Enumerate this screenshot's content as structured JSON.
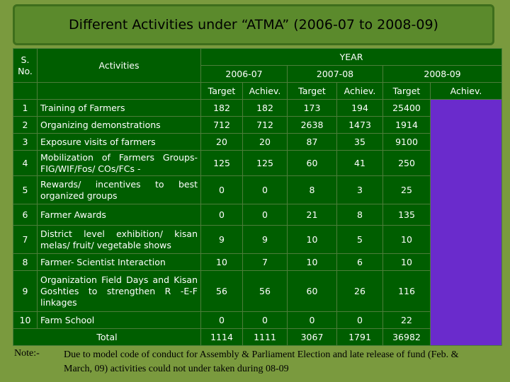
{
  "title": "Different  Activities under “ATMA” (2006-07 to 2008-09)",
  "table": {
    "header": {
      "s_no": "S. No.",
      "activities": "Activities",
      "year": "YEAR",
      "years": [
        "2006-07",
        "2007-08",
        "2008-09"
      ],
      "columns": [
        "Target",
        "Achiev.",
        "Target",
        "Achiev.",
        "Target",
        "Achiev."
      ]
    },
    "rows": [
      {
        "no": 1,
        "activity": "Training of Farmers",
        "values": [
          182,
          182,
          173,
          194,
          25400
        ]
      },
      {
        "no": 2,
        "activity": "Organizing demonstrations",
        "values": [
          712,
          712,
          2638,
          1473,
          1914
        ]
      },
      {
        "no": 3,
        "activity": "Exposure visits of farmers",
        "values": [
          20,
          20,
          87,
          35,
          9100
        ]
      },
      {
        "no": 4,
        "activity": "Mobilization of Farmers Groups- FIG/WIF/Fos/ COs/FCs -",
        "values": [
          125,
          125,
          60,
          41,
          250
        ]
      },
      {
        "no": 5,
        "activity": "Rewards/ incentives to best organized groups",
        "values": [
          0,
          0,
          8,
          3,
          25
        ]
      },
      {
        "no": 6,
        "activity": "Farmer Awards",
        "values": [
          0,
          0,
          21,
          8,
          135
        ]
      },
      {
        "no": 7,
        "activity": "District level exhibition/ kisan melas/ fruit/ vegetable shows",
        "values": [
          9,
          9,
          10,
          5,
          10
        ]
      },
      {
        "no": 8,
        "activity": "Farmer- Scientist Interaction",
        "values": [
          10,
          7,
          10,
          6,
          10
        ]
      },
      {
        "no": 9,
        "activity": "Organization Field Days and Kisan Goshties to strengthen R -E-F linkages",
        "values": [
          56,
          56,
          60,
          26,
          116
        ]
      },
      {
        "no": 10,
        "activity": "Farm School",
        "values": [
          0,
          0,
          0,
          0,
          22
        ]
      }
    ],
    "total": {
      "label": "Total",
      "values": [
        1114,
        1111,
        3067,
        1791,
        36982
      ]
    }
  },
  "note": {
    "label": "Note:-",
    "text": "Due to model code of conduct for Assembly & Parliament Election and late release of fund (Feb. & March, 09) activities could not under taken during 08-09"
  }
}
